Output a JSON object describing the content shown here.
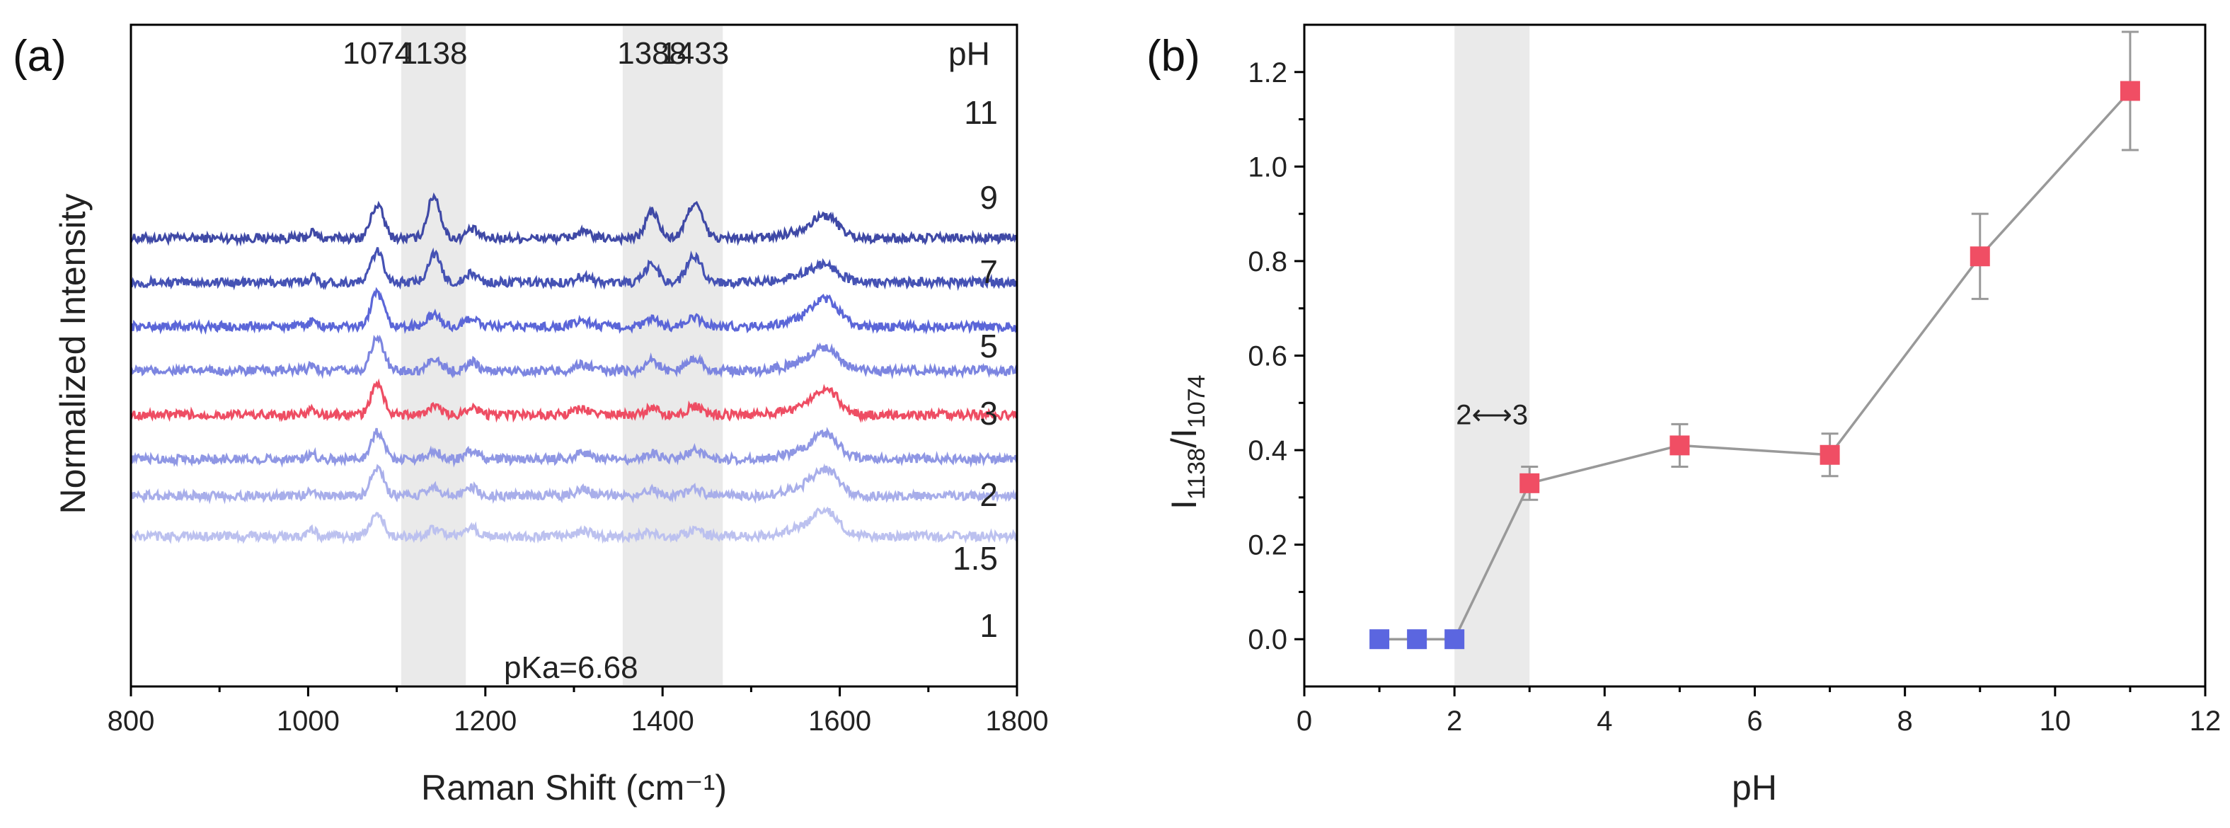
{
  "chart_data": [
    {
      "panel_label": "(a)",
      "type": "line",
      "xlabel": "Raman Shift (cm⁻¹)",
      "ylabel": "Normalized Intensity",
      "xlim": [
        800,
        1800
      ],
      "x_ticks": [
        "800",
        "1000",
        "1200",
        "1400",
        "1600",
        "1800"
      ],
      "y_ticks_shown": false,
      "shaded_ranges": [
        [
          1105,
          1178
        ],
        [
          1355,
          1468
        ]
      ],
      "peak_labels": [
        "1074",
        "1138",
        "1388",
        "1433"
      ],
      "peak_positions": [
        1078,
        1142,
        1388,
        1436
      ],
      "legend_title": "pH",
      "annotation": "pKa=6.68",
      "series": [
        {
          "name": "11",
          "color": "#3f49a6",
          "baseline": 2.1,
          "peaks": [
            1.4,
            1.8,
            1.15,
            1.5,
            0.8
          ]
        },
        {
          "name": "9",
          "color": "#4552b4",
          "baseline": 1.5,
          "peaks": [
            1.3,
            1.2,
            0.8,
            1.1,
            0.6
          ]
        },
        {
          "name": "7",
          "color": "#5b66d8",
          "baseline": 0.9,
          "peaks": [
            1.4,
            0.5,
            0.3,
            0.35,
            1.0
          ]
        },
        {
          "name": "5",
          "color": "#7c85e0",
          "baseline": 0.3,
          "peaks": [
            1.4,
            0.55,
            0.45,
            0.55,
            0.85
          ]
        },
        {
          "name": "3",
          "color": "#ee4d63",
          "baseline": -0.3,
          "peaks": [
            1.3,
            0.35,
            0.25,
            0.35,
            0.95
          ]
        },
        {
          "name": "2",
          "color": "#8f97e4",
          "baseline": -0.9,
          "peaks": [
            1.15,
            0.35,
            0.25,
            0.35,
            0.9
          ]
        },
        {
          "name": "1.5",
          "color": "#a8aeea",
          "baseline": -1.4,
          "peaks": [
            1.15,
            0.4,
            0.25,
            0.3,
            1.0
          ]
        },
        {
          "name": "1",
          "color": "#bcc1ef",
          "baseline": -1.95,
          "peaks": [
            0.95,
            0.3,
            0.2,
            0.25,
            0.95
          ]
        }
      ]
    },
    {
      "panel_label": "(b)",
      "type": "scatter",
      "xlabel": "pH",
      "ylabel": "I1138/I1074",
      "ylabel_main": "I",
      "ylabel_sub1": "1138",
      "ylabel_slash": "/I",
      "ylabel_sub2": "1074",
      "xlim": [
        0,
        12
      ],
      "ylim": [
        -0.1,
        1.3
      ],
      "x_ticks": [
        "0",
        "2",
        "4",
        "6",
        "8",
        "10",
        "12"
      ],
      "y_ticks": [
        "0.0",
        "0.2",
        "0.4",
        "0.6",
        "0.8",
        "1.0",
        "1.2"
      ],
      "shaded_range": [
        2,
        3
      ],
      "annotation": "2⟷3",
      "line_color": "#999999",
      "points": [
        {
          "x": 1,
          "y": 0.0,
          "err": 0,
          "color": "#5b66e0"
        },
        {
          "x": 1.5,
          "y": 0.0,
          "err": 0,
          "color": "#5b66e0"
        },
        {
          "x": 2,
          "y": 0.0,
          "err": 0,
          "color": "#5b66e0"
        },
        {
          "x": 3,
          "y": 0.33,
          "err": 0.035,
          "color": "#f04e64"
        },
        {
          "x": 5,
          "y": 0.41,
          "err": 0.045,
          "color": "#f04e64"
        },
        {
          "x": 7,
          "y": 0.39,
          "err": 0.045,
          "color": "#f04e64"
        },
        {
          "x": 9,
          "y": 0.81,
          "err": 0.09,
          "color": "#f04e64"
        },
        {
          "x": 11,
          "y": 1.16,
          "err": 0.125,
          "color": "#f04e64"
        }
      ]
    }
  ]
}
